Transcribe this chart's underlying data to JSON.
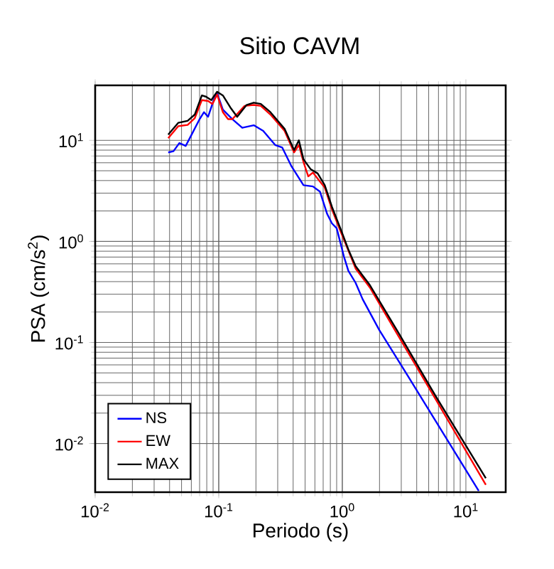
{
  "chart_data": {
    "type": "line",
    "title": "Sitio CAVM",
    "xlabel": "Periodo (s)",
    "ylabel": "PSA (cm/s$^{2}$)",
    "log": "xy",
    "grid": true,
    "legend": "bottom left",
    "line_style": "solid",
    "marker": "none",
    "xlim": [
      0.01,
      21
    ],
    "ylim": [
      0.0033,
      35
    ],
    "xticks": [
      {
        "value": 0.01,
        "label": "10$^{-2}$"
      },
      {
        "value": 0.1,
        "label": "10$^{-1}$"
      },
      {
        "value": 1,
        "label": "10$^{0}$"
      },
      {
        "value": 10,
        "label": "10$^{1}$"
      }
    ],
    "yticks": [
      {
        "value": 0.01,
        "label": "10$^{-2}$"
      },
      {
        "value": 0.1,
        "label": "10$^{-1}$"
      },
      {
        "value": 1,
        "label": "10$^{0}$"
      },
      {
        "value": 10,
        "label": "10$^{1}$"
      }
    ],
    "series": [
      {
        "name": "NS",
        "color": "#0000ff",
        "x": [
          0.039,
          0.043,
          0.048,
          0.054,
          0.061,
          0.07,
          0.076,
          0.082,
          0.091,
          0.097,
          0.108,
          0.129,
          0.155,
          0.192,
          0.229,
          0.286,
          0.326,
          0.389,
          0.485,
          0.578,
          0.66,
          0.754,
          0.824,
          0.9,
          1.03,
          1.12,
          1.28,
          1.46,
          1.99,
          3.38,
          12.7
        ],
        "values": [
          7.6,
          7.8,
          9.4,
          8.8,
          11.7,
          16.2,
          19,
          17.1,
          25,
          29.3,
          20.1,
          16.2,
          13.3,
          14.1,
          12.4,
          9.0,
          8.5,
          5.5,
          3.6,
          3.5,
          3.1,
          1.87,
          1.51,
          1.35,
          0.71,
          0.51,
          0.39,
          0.268,
          0.133,
          0.047,
          0.0034
        ]
      },
      {
        "name": "EW",
        "color": "#ff0000",
        "x": [
          0.039,
          0.047,
          0.056,
          0.064,
          0.073,
          0.082,
          0.089,
          0.097,
          0.108,
          0.119,
          0.129,
          0.162,
          0.192,
          0.219,
          0.262,
          0.341,
          0.407,
          0.445,
          0.485,
          0.53,
          0.578,
          0.721,
          0.824,
          0.98,
          1.12,
          1.28,
          1.67,
          2.83,
          5.74,
          14.5
        ],
        "values": [
          10.5,
          13.8,
          14.2,
          16.6,
          25,
          24.5,
          22.9,
          28.4,
          19,
          16.2,
          16.2,
          21.9,
          22.4,
          21.9,
          18,
          12.4,
          7.6,
          9.0,
          6.1,
          4.4,
          4.8,
          3.4,
          2.08,
          1.21,
          0.81,
          0.54,
          0.35,
          0.117,
          0.027,
          0.0039
        ]
      },
      {
        "name": "MAX",
        "color": "#000000",
        "x": [
          0.039,
          0.047,
          0.056,
          0.064,
          0.073,
          0.079,
          0.087,
          0.097,
          0.108,
          0.124,
          0.141,
          0.168,
          0.192,
          0.219,
          0.262,
          0.341,
          0.407,
          0.445,
          0.485,
          0.553,
          0.632,
          0.721,
          0.824,
          0.98,
          1.12,
          1.28,
          1.67,
          2.83,
          5.74,
          14.5
        ],
        "values": [
          11.4,
          14.9,
          15.6,
          18,
          27.8,
          27,
          25,
          30.3,
          27.8,
          21.2,
          17.1,
          22.4,
          23.6,
          22.9,
          19,
          13,
          8.0,
          10,
          6.5,
          5.2,
          4.7,
          3.6,
          2.2,
          1.28,
          0.83,
          0.57,
          0.37,
          0.126,
          0.029,
          0.00453
        ]
      }
    ]
  }
}
